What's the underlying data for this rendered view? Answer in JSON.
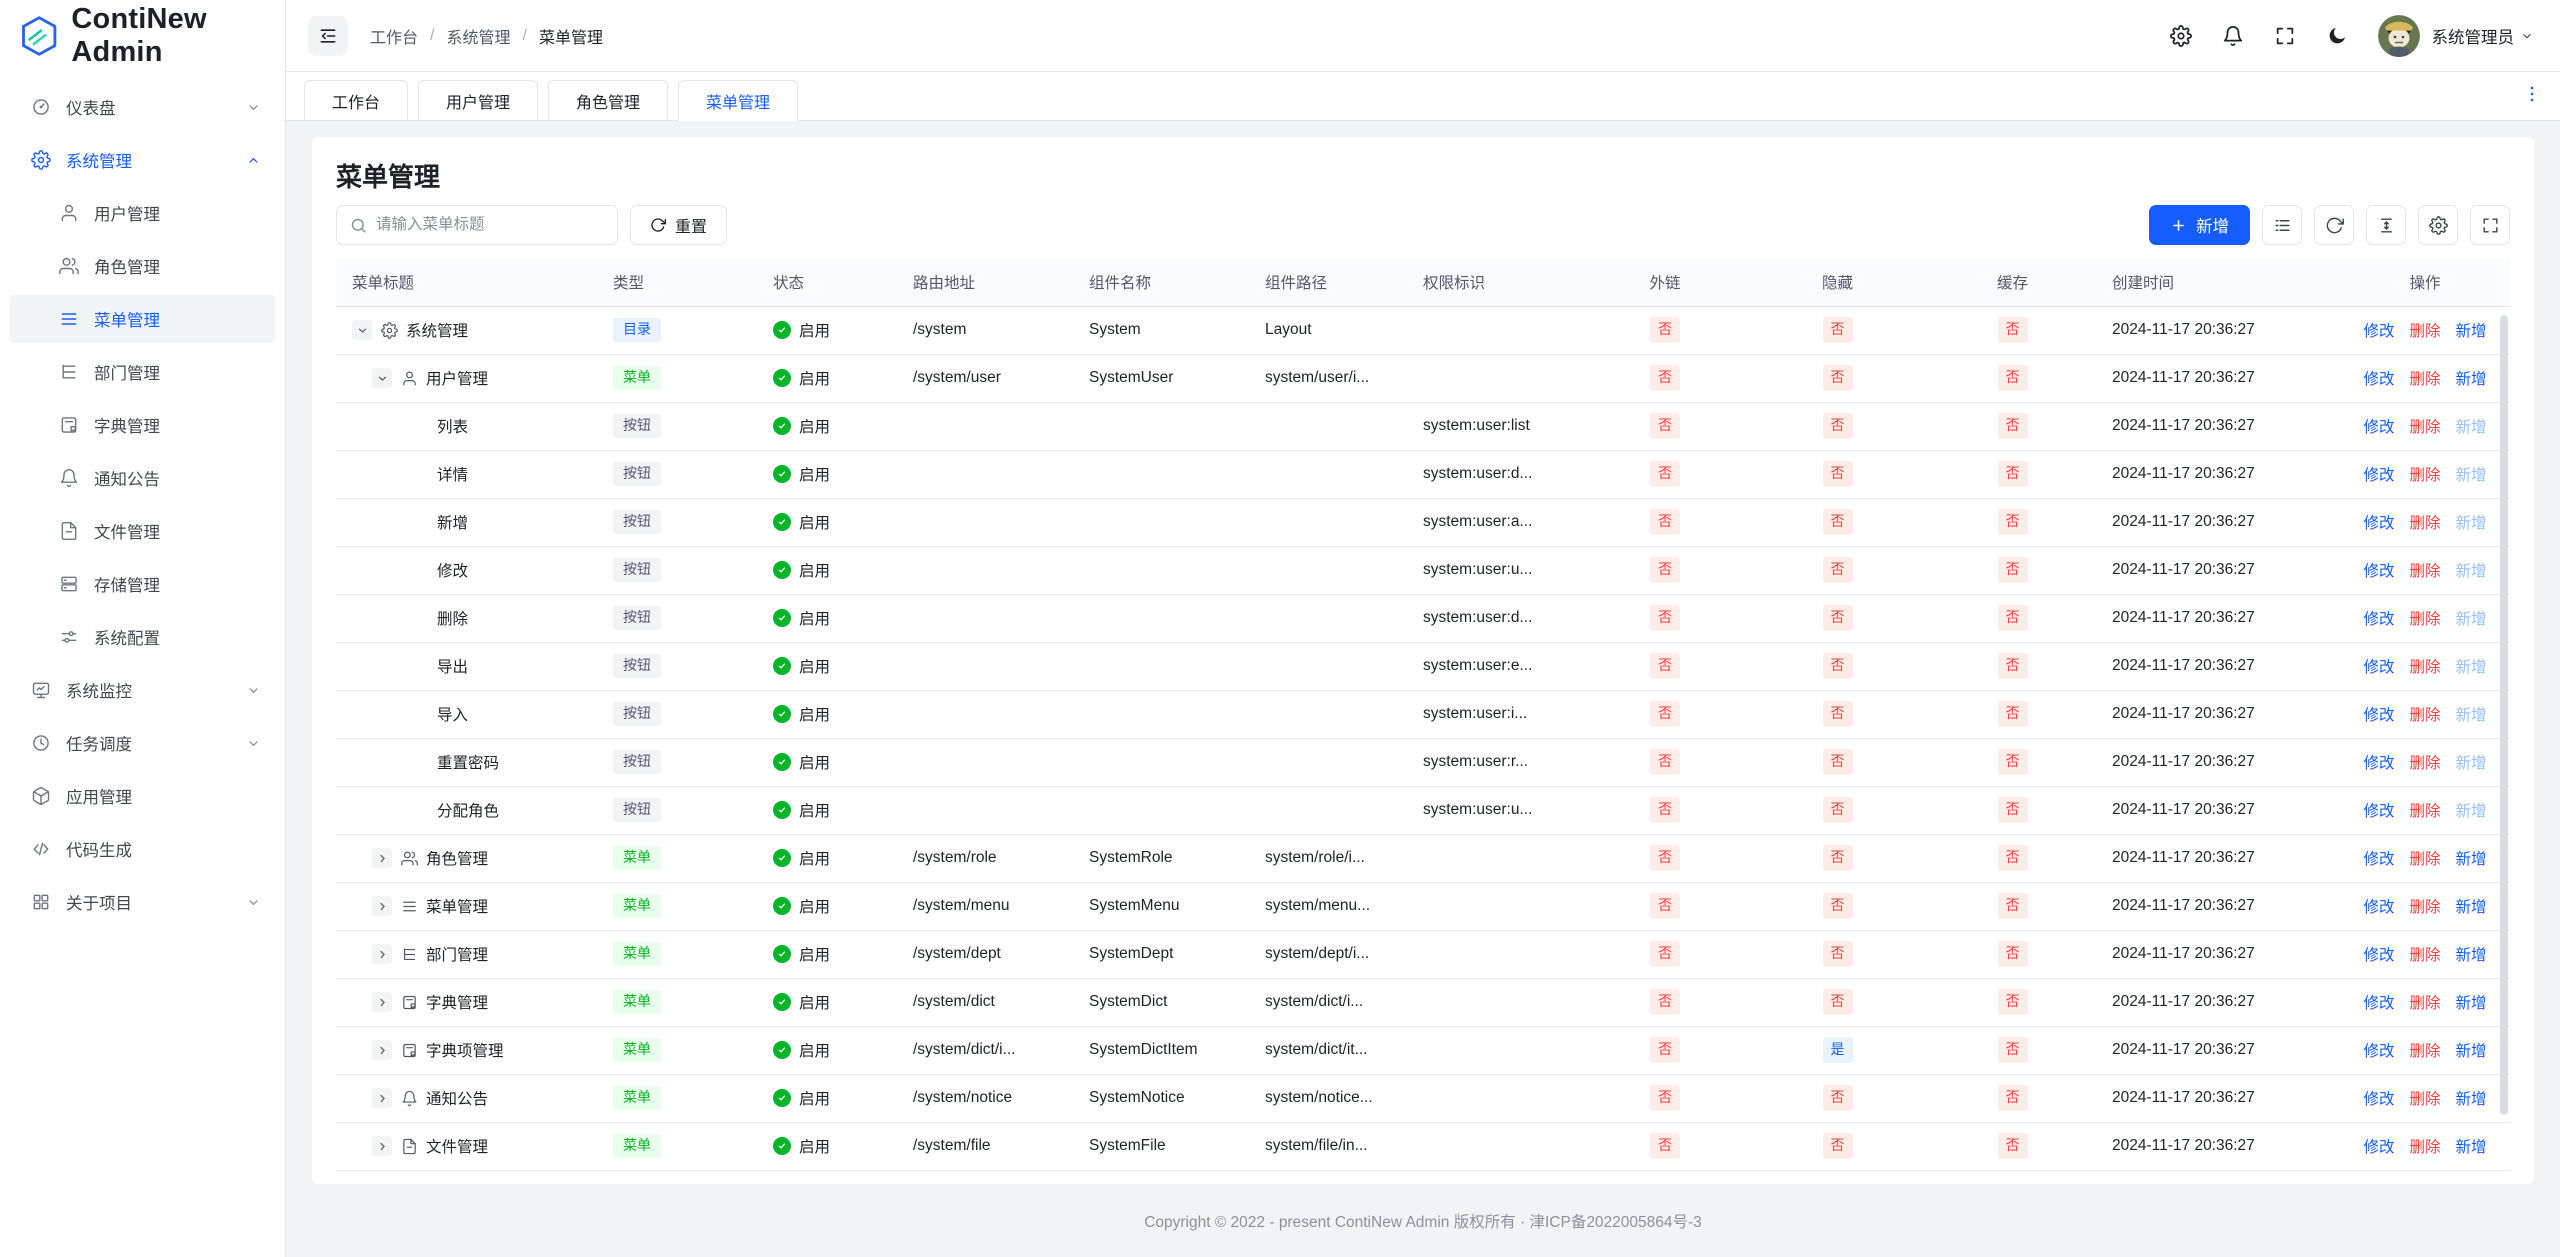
{
  "brand": {
    "name": "ContiNew Admin"
  },
  "sidebar": {
    "items": [
      {
        "label": "仪表盘",
        "icon": "dashboard-icon",
        "expandable": true,
        "expanded": false
      },
      {
        "label": "系统管理",
        "icon": "gear-icon",
        "expandable": true,
        "expanded": true,
        "active": true,
        "children": [
          {
            "label": "用户管理",
            "icon": "user-icon"
          },
          {
            "label": "角色管理",
            "icon": "users-icon"
          },
          {
            "label": "菜单管理",
            "icon": "menu-icon",
            "selected": true
          },
          {
            "label": "部门管理",
            "icon": "tree-icon"
          },
          {
            "label": "字典管理",
            "icon": "dict-icon"
          },
          {
            "label": "通知公告",
            "icon": "bell-icon"
          },
          {
            "label": "文件管理",
            "icon": "file-icon"
          },
          {
            "label": "存储管理",
            "icon": "storage-icon"
          },
          {
            "label": "系统配置",
            "icon": "sliders-icon"
          }
        ]
      },
      {
        "label": "系统监控",
        "icon": "monitor-icon",
        "expandable": true,
        "expanded": false
      },
      {
        "label": "任务调度",
        "icon": "clock-icon",
        "expandable": true,
        "expanded": false
      },
      {
        "label": "应用管理",
        "icon": "cube-icon",
        "expandable": false
      },
      {
        "label": "代码生成",
        "icon": "code-icon",
        "expandable": false
      },
      {
        "label": "关于项目",
        "icon": "grid-icon",
        "expandable": true,
        "expanded": false
      }
    ]
  },
  "header": {
    "breadcrumb": [
      "工作台",
      "系统管理",
      "菜单管理"
    ],
    "action_icons": [
      "gear-icon",
      "bell-icon",
      "fullscreen-icon",
      "moon-icon"
    ],
    "user": {
      "name": "系统管理员"
    }
  },
  "tabbar": {
    "tabs": [
      "工作台",
      "用户管理",
      "角色管理",
      "菜单管理"
    ],
    "active": "菜单管理"
  },
  "page": {
    "title": "菜单管理",
    "search": {
      "placeholder": "请输入菜单标题"
    },
    "reset_label": "重置",
    "add_label": "新增",
    "tool_icons": [
      "list-icon",
      "refresh-icon",
      "line-height-icon",
      "gear-icon",
      "fullscreen-icon"
    ]
  },
  "table": {
    "columns": [
      {
        "label": "菜单标题",
        "align": "left"
      },
      {
        "label": "类型",
        "align": "left"
      },
      {
        "label": "状态",
        "align": "left"
      },
      {
        "label": "路由地址",
        "align": "left"
      },
      {
        "label": "组件名称",
        "align": "left"
      },
      {
        "label": "组件路径",
        "align": "left"
      },
      {
        "label": "权限标识",
        "align": "left"
      },
      {
        "label": "外链",
        "align": "center"
      },
      {
        "label": "隐藏",
        "align": "center"
      },
      {
        "label": "缓存",
        "align": "center"
      },
      {
        "label": "创建时间",
        "align": "left"
      },
      {
        "label": "操作",
        "align": "center"
      }
    ],
    "action_labels": [
      "修改",
      "删除",
      "新增"
    ],
    "rows": [
      {
        "title": "系统管理",
        "depth": 0,
        "expand": "down",
        "icon": "gear-icon",
        "type": "目录",
        "status": "启用",
        "route": "/system",
        "component": "System",
        "path": "Layout",
        "perm": "",
        "external": "否",
        "hidden": "否",
        "cache": "否",
        "created": "2024-11-17 20:36:27"
      },
      {
        "title": "用户管理",
        "depth": 1,
        "expand": "down",
        "icon": "user-icon",
        "type": "菜单",
        "status": "启用",
        "route": "/system/user",
        "component": "SystemUser",
        "path": "system/user/i...",
        "perm": "",
        "external": "否",
        "hidden": "否",
        "cache": "否",
        "created": "2024-11-17 20:36:27"
      },
      {
        "title": "列表",
        "depth": 2,
        "expand": null,
        "icon": null,
        "type": "按钮",
        "status": "启用",
        "route": "",
        "component": "",
        "path": "",
        "perm": "system:user:list",
        "external": "否",
        "hidden": "否",
        "cache": "否",
        "created": "2024-11-17 20:36:27"
      },
      {
        "title": "详情",
        "depth": 2,
        "expand": null,
        "icon": null,
        "type": "按钮",
        "status": "启用",
        "route": "",
        "component": "",
        "path": "",
        "perm": "system:user:d...",
        "external": "否",
        "hidden": "否",
        "cache": "否",
        "created": "2024-11-17 20:36:27"
      },
      {
        "title": "新增",
        "depth": 2,
        "expand": null,
        "icon": null,
        "type": "按钮",
        "status": "启用",
        "route": "",
        "component": "",
        "path": "",
        "perm": "system:user:a...",
        "external": "否",
        "hidden": "否",
        "cache": "否",
        "created": "2024-11-17 20:36:27"
      },
      {
        "title": "修改",
        "depth": 2,
        "expand": null,
        "icon": null,
        "type": "按钮",
        "status": "启用",
        "route": "",
        "component": "",
        "path": "",
        "perm": "system:user:u...",
        "external": "否",
        "hidden": "否",
        "cache": "否",
        "created": "2024-11-17 20:36:27"
      },
      {
        "title": "删除",
        "depth": 2,
        "expand": null,
        "icon": null,
        "type": "按钮",
        "status": "启用",
        "route": "",
        "component": "",
        "path": "",
        "perm": "system:user:d...",
        "external": "否",
        "hidden": "否",
        "cache": "否",
        "created": "2024-11-17 20:36:27"
      },
      {
        "title": "导出",
        "depth": 2,
        "expand": null,
        "icon": null,
        "type": "按钮",
        "status": "启用",
        "route": "",
        "component": "",
        "path": "",
        "perm": "system:user:e...",
        "external": "否",
        "hidden": "否",
        "cache": "否",
        "created": "2024-11-17 20:36:27"
      },
      {
        "title": "导入",
        "depth": 2,
        "expand": null,
        "icon": null,
        "type": "按钮",
        "status": "启用",
        "route": "",
        "component": "",
        "path": "",
        "perm": "system:user:i...",
        "external": "否",
        "hidden": "否",
        "cache": "否",
        "created": "2024-11-17 20:36:27"
      },
      {
        "title": "重置密码",
        "depth": 2,
        "expand": null,
        "icon": null,
        "type": "按钮",
        "status": "启用",
        "route": "",
        "component": "",
        "path": "",
        "perm": "system:user:r...",
        "external": "否",
        "hidden": "否",
        "cache": "否",
        "created": "2024-11-17 20:36:27"
      },
      {
        "title": "分配角色",
        "depth": 2,
        "expand": null,
        "icon": null,
        "type": "按钮",
        "status": "启用",
        "route": "",
        "component": "",
        "path": "",
        "perm": "system:user:u...",
        "external": "否",
        "hidden": "否",
        "cache": "否",
        "created": "2024-11-17 20:36:27"
      },
      {
        "title": "角色管理",
        "depth": 1,
        "expand": "right",
        "icon": "users-icon",
        "type": "菜单",
        "status": "启用",
        "route": "/system/role",
        "component": "SystemRole",
        "path": "system/role/i...",
        "perm": "",
        "external": "否",
        "hidden": "否",
        "cache": "否",
        "created": "2024-11-17 20:36:27"
      },
      {
        "title": "菜单管理",
        "depth": 1,
        "expand": "right",
        "icon": "menu-icon",
        "type": "菜单",
        "status": "启用",
        "route": "/system/menu",
        "component": "SystemMenu",
        "path": "system/menu...",
        "perm": "",
        "external": "否",
        "hidden": "否",
        "cache": "否",
        "created": "2024-11-17 20:36:27"
      },
      {
        "title": "部门管理",
        "depth": 1,
        "expand": "right",
        "icon": "tree-icon",
        "type": "菜单",
        "status": "启用",
        "route": "/system/dept",
        "component": "SystemDept",
        "path": "system/dept/i...",
        "perm": "",
        "external": "否",
        "hidden": "否",
        "cache": "否",
        "created": "2024-11-17 20:36:27"
      },
      {
        "title": "字典管理",
        "depth": 1,
        "expand": "right",
        "icon": "dict-icon",
        "type": "菜单",
        "status": "启用",
        "route": "/system/dict",
        "component": "SystemDict",
        "path": "system/dict/i...",
        "perm": "",
        "external": "否",
        "hidden": "否",
        "cache": "否",
        "created": "2024-11-17 20:36:27"
      },
      {
        "title": "字典项管理",
        "depth": 1,
        "expand": "right",
        "icon": "dict-icon",
        "type": "菜单",
        "status": "启用",
        "route": "/system/dict/i...",
        "component": "SystemDictItem",
        "path": "system/dict/it...",
        "perm": "",
        "external": "否",
        "hidden": "是",
        "cache": "否",
        "created": "2024-11-17 20:36:27"
      },
      {
        "title": "通知公告",
        "depth": 1,
        "expand": "right",
        "icon": "bell-icon",
        "type": "菜单",
        "status": "启用",
        "route": "/system/notice",
        "component": "SystemNotice",
        "path": "system/notice...",
        "perm": "",
        "external": "否",
        "hidden": "否",
        "cache": "否",
        "created": "2024-11-17 20:36:27"
      },
      {
        "title": "文件管理",
        "depth": 1,
        "expand": "right",
        "icon": "file-icon",
        "type": "菜单",
        "status": "启用",
        "route": "/system/file",
        "component": "SystemFile",
        "path": "system/file/in...",
        "perm": "",
        "external": "否",
        "hidden": "否",
        "cache": "否",
        "created": "2024-11-17 20:36:27"
      }
    ]
  },
  "footer": {
    "copyright": "Copyright © 2022 - present ContiNew Admin 版权所有 · 津ICP备2022005864号-3"
  }
}
